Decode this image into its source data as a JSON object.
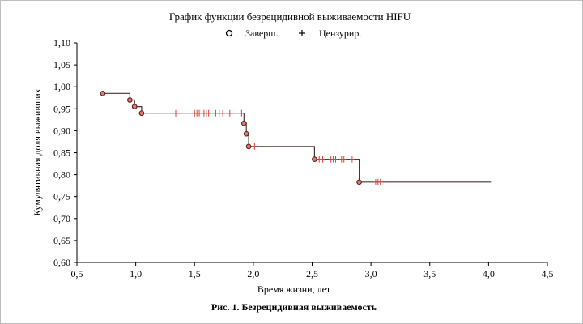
{
  "chart_data": {
    "type": "line",
    "title": "График функции безрецидивной выживаемости HIFU",
    "xlabel": "Время жизни, лет",
    "ylabel": "Кумулятивная доля выживших",
    "xlim": [
      0.5,
      4.5
    ],
    "ylim": [
      0.6,
      1.1
    ],
    "x_ticks": [
      "0,5",
      "1,0",
      "1,5",
      "2,0",
      "2,5",
      "3,0",
      "3,5",
      "4,0",
      "4,5"
    ],
    "y_ticks": [
      "0,60",
      "0,65",
      "0,70",
      "0,75",
      "0,80",
      "0,85",
      "0,90",
      "0,95",
      "1,00",
      "1,05",
      "1,10"
    ],
    "grid": false,
    "legend": {
      "placement": "top",
      "entries": [
        {
          "symbol": "o",
          "label": "Заверш."
        },
        {
          "symbol": "+",
          "label": "Цензурир."
        }
      ]
    },
    "series": [
      {
        "name": "Заверш.",
        "step_curve": [
          [
            0.72,
            0.985
          ],
          [
            0.95,
            0.985
          ],
          [
            0.95,
            0.97
          ],
          [
            0.99,
            0.97
          ],
          [
            0.99,
            0.955
          ],
          [
            1.05,
            0.955
          ],
          [
            1.05,
            0.94
          ],
          [
            1.92,
            0.94
          ],
          [
            1.92,
            0.917
          ],
          [
            1.94,
            0.917
          ],
          [
            1.94,
            0.893
          ],
          [
            1.96,
            0.893
          ],
          [
            1.96,
            0.864
          ],
          [
            2.52,
            0.864
          ],
          [
            2.52,
            0.835
          ],
          [
            2.9,
            0.835
          ],
          [
            2.9,
            0.783
          ],
          [
            4.02,
            0.783
          ]
        ],
        "events": [
          {
            "x": 0.72,
            "y": 0.985
          },
          {
            "x": 0.95,
            "y": 0.97
          },
          {
            "x": 0.99,
            "y": 0.955
          },
          {
            "x": 1.05,
            "y": 0.94
          },
          {
            "x": 1.92,
            "y": 0.917
          },
          {
            "x": 1.94,
            "y": 0.893
          },
          {
            "x": 1.96,
            "y": 0.864
          },
          {
            "x": 2.52,
            "y": 0.835
          },
          {
            "x": 2.9,
            "y": 0.783
          }
        ]
      },
      {
        "name": "Цензурир.",
        "censored": [
          {
            "x": 1.34,
            "y": 0.94
          },
          {
            "x": 1.5,
            "y": 0.94
          },
          {
            "x": 1.52,
            "y": 0.94
          },
          {
            "x": 1.54,
            "y": 0.94
          },
          {
            "x": 1.58,
            "y": 0.94
          },
          {
            "x": 1.6,
            "y": 0.94
          },
          {
            "x": 1.62,
            "y": 0.94
          },
          {
            "x": 1.68,
            "y": 0.94
          },
          {
            "x": 1.71,
            "y": 0.94
          },
          {
            "x": 1.74,
            "y": 0.94
          },
          {
            "x": 1.8,
            "y": 0.94
          },
          {
            "x": 1.9,
            "y": 0.94
          },
          {
            "x": 2.01,
            "y": 0.864
          },
          {
            "x": 2.56,
            "y": 0.835
          },
          {
            "x": 2.59,
            "y": 0.835
          },
          {
            "x": 2.66,
            "y": 0.835
          },
          {
            "x": 2.68,
            "y": 0.835
          },
          {
            "x": 2.7,
            "y": 0.835
          },
          {
            "x": 2.75,
            "y": 0.835
          },
          {
            "x": 2.77,
            "y": 0.835
          },
          {
            "x": 2.84,
            "y": 0.835
          },
          {
            "x": 3.04,
            "y": 0.783
          },
          {
            "x": 3.06,
            "y": 0.783
          },
          {
            "x": 3.08,
            "y": 0.783
          }
        ]
      }
    ],
    "caption": "Рис. 1. Безрецидивная выживаемость",
    "colors": {
      "curve": "#4a3530",
      "censor_mark": "#e53935",
      "event_marker_edge": "#5a2420",
      "event_marker_fill": "#e07a70",
      "axis": "#000000"
    }
  }
}
